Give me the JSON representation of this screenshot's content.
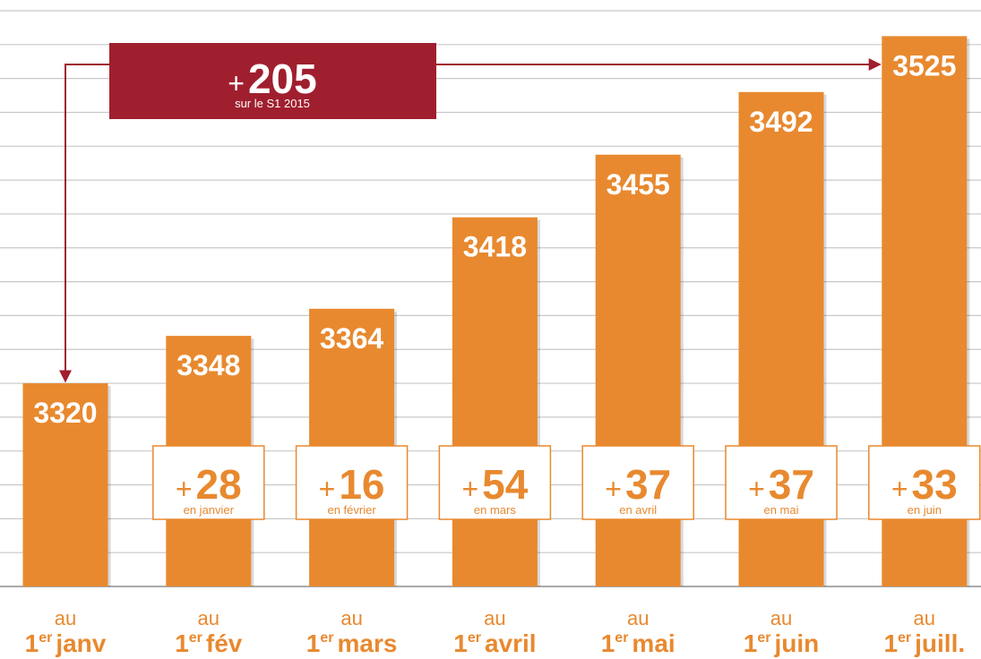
{
  "chart_data": {
    "type": "bar",
    "categories": [
      "janv",
      "fév",
      "mars",
      "avril",
      "mai",
      "juin",
      "juill."
    ],
    "category_prefix": "au",
    "category_day": "1",
    "category_sup": "er",
    "values": [
      3320,
      3348,
      3364,
      3418,
      3455,
      3492,
      3525
    ],
    "color": "#e8892f",
    "ylim": [
      3200,
      3540
    ],
    "yticks": [
      3200,
      3220,
      3240,
      3260,
      3280,
      3300,
      3320,
      3340,
      3360,
      3380,
      3400,
      3420,
      3440,
      3460,
      3480,
      3500,
      3520,
      3540
    ],
    "grid": true,
    "changes": {
      "sign": "+",
      "values": [
        28,
        16,
        54,
        37,
        37,
        33
      ],
      "labels": [
        "en janvier",
        "en février",
        "en mars",
        "en avril",
        "en mai",
        "en juin"
      ]
    },
    "total": {
      "sign": "+",
      "value": 205,
      "label": "sur le S1 2015",
      "color": "#a01f2e"
    }
  }
}
